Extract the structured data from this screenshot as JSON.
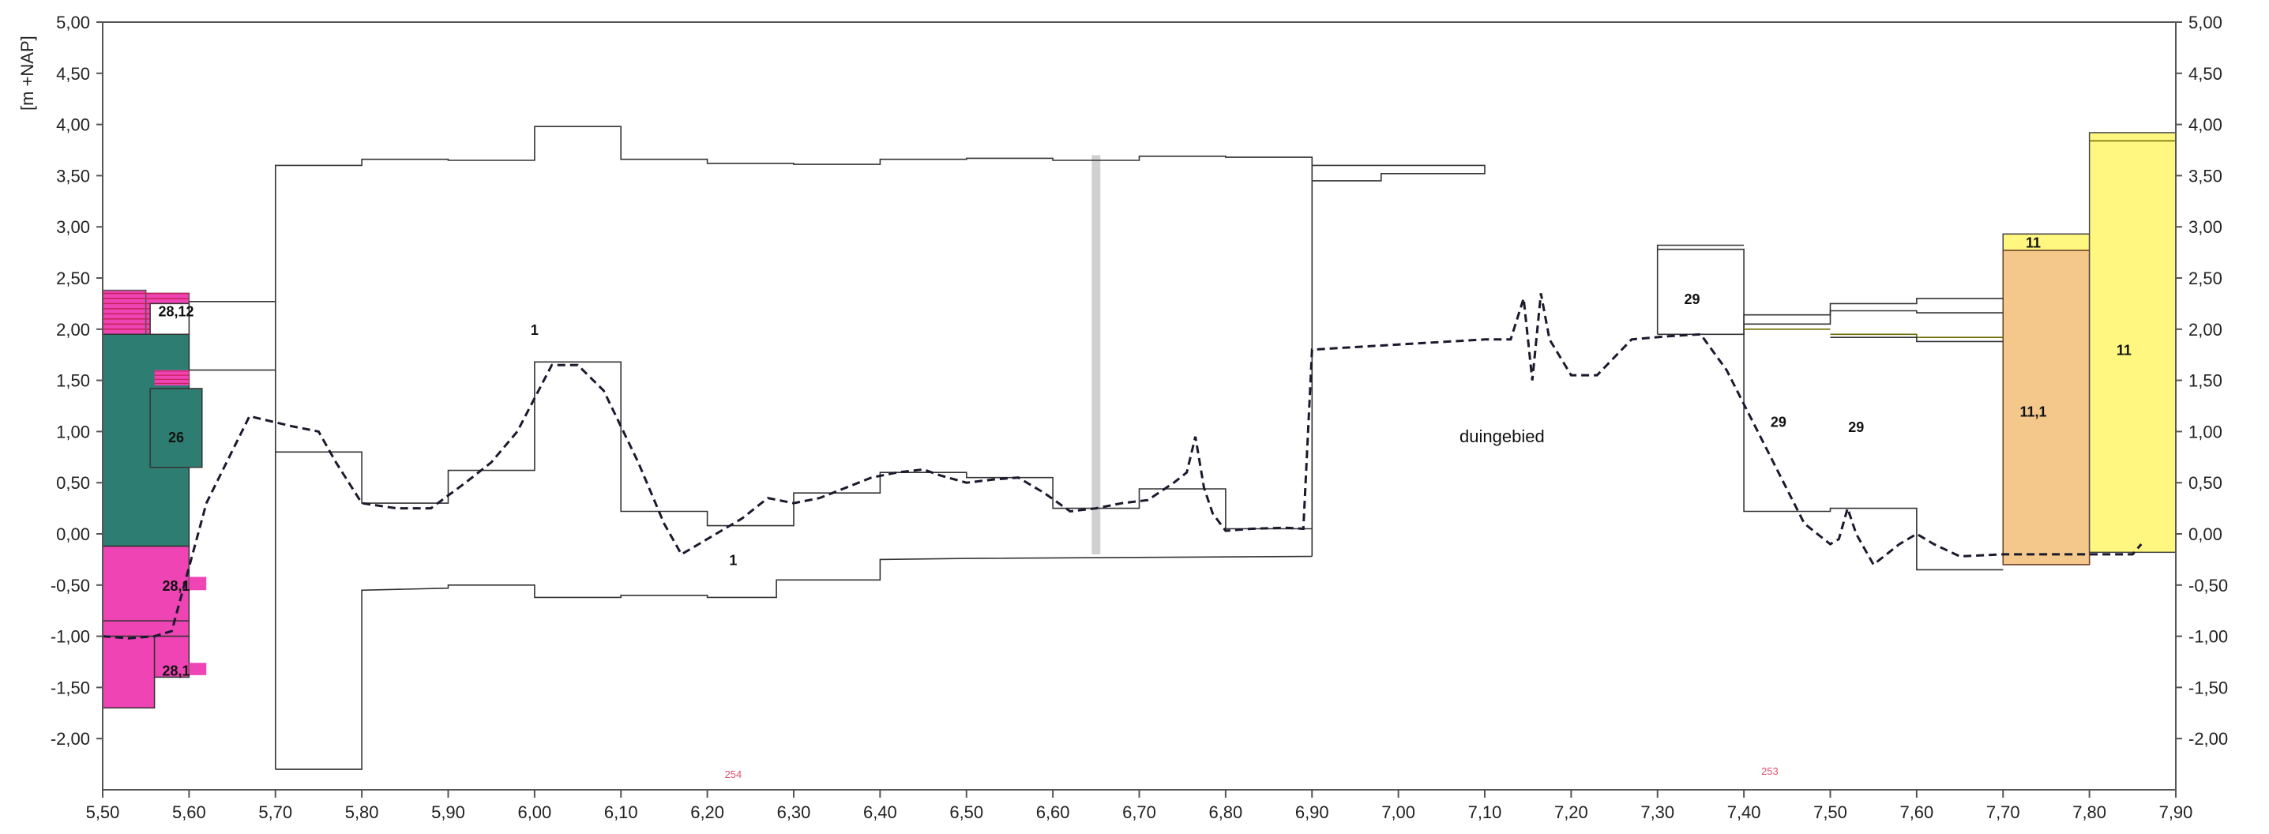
{
  "chart_data": {
    "type": "line",
    "title": "",
    "ylabel": "[m +NAP]",
    "xlim": [
      5.5,
      7.9
    ],
    "ylim": [
      -2.5,
      5.0
    ],
    "x_ticks": [
      "5,50",
      "5,60",
      "5,70",
      "5,80",
      "5,90",
      "6,00",
      "6,10",
      "6,20",
      "6,30",
      "6,40",
      "6,50",
      "6,60",
      "6,70",
      "6,80",
      "6,90",
      "7,00",
      "7,10",
      "7,20",
      "7,30",
      "7,40",
      "7,50",
      "7,60",
      "7,70",
      "7,80",
      "7,90"
    ],
    "x_tick_values": [
      5.5,
      5.6,
      5.7,
      5.8,
      5.9,
      6.0,
      6.1,
      6.2,
      6.3,
      6.4,
      6.5,
      6.6,
      6.7,
      6.8,
      6.9,
      7.0,
      7.1,
      7.2,
      7.3,
      7.4,
      7.5,
      7.6,
      7.7,
      7.8,
      7.9
    ],
    "y_ticks": [
      "5,00",
      "4,50",
      "4,00",
      "3,50",
      "3,00",
      "2,50",
      "2,00",
      "1,50",
      "1,00",
      "0,50",
      "0,00",
      "-0,50",
      "-1,00",
      "-1,50",
      "-2,00"
    ],
    "y_tick_values": [
      5.0,
      4.5,
      4.0,
      3.5,
      3.0,
      2.5,
      2.0,
      1.5,
      1.0,
      0.5,
      0.0,
      -0.5,
      -1.0,
      -1.5,
      -2.0
    ],
    "colors": {
      "pink": "#ee44b4",
      "teal": "#2e7d72",
      "magenta_hatch": "#c8205a",
      "yellow": "#fff780",
      "orange": "#f3c88a",
      "dashed_line": "#1a1a2e",
      "outline": "#333333",
      "grid": "#bbbbbb"
    },
    "series": [
      {
        "style": "dashed",
        "x": [
          5.5,
          5.53,
          5.56,
          5.58,
          5.62,
          5.67,
          5.72,
          5.75,
          5.77,
          5.8,
          5.84,
          5.88,
          5.92,
          5.95,
          5.98,
          6.02,
          6.05,
          6.08,
          6.12,
          6.15,
          6.17,
          6.19,
          6.21,
          6.24,
          6.27,
          6.3,
          6.33,
          6.36,
          6.39,
          6.42,
          6.45,
          6.47,
          6.5,
          6.53,
          6.56,
          6.59,
          6.62,
          6.65,
          6.68,
          6.71,
          6.74,
          6.755,
          6.765,
          6.775,
          6.785,
          6.8,
          6.83,
          6.87,
          6.89,
          6.9,
          7.0,
          7.1,
          7.13,
          7.145,
          7.155,
          7.165,
          7.175,
          7.2,
          7.23,
          7.27,
          7.31,
          7.35,
          7.38,
          7.41,
          7.44,
          7.47,
          7.5,
          7.51,
          7.52,
          7.53,
          7.55,
          7.58,
          7.6,
          7.62,
          7.65,
          7.7,
          7.75,
          7.8,
          7.85,
          7.86
        ],
        "y": [
          -1.0,
          -1.02,
          -1.0,
          -0.95,
          0.3,
          1.15,
          1.05,
          1.0,
          0.7,
          0.3,
          0.25,
          0.25,
          0.5,
          0.7,
          1.0,
          1.65,
          1.65,
          1.4,
          0.7,
          0.1,
          -0.2,
          -0.1,
          0.0,
          0.15,
          0.35,
          0.3,
          0.35,
          0.45,
          0.55,
          0.6,
          0.63,
          0.57,
          0.5,
          0.53,
          0.55,
          0.4,
          0.22,
          0.25,
          0.3,
          0.33,
          0.5,
          0.6,
          0.95,
          0.45,
          0.2,
          0.03,
          0.05,
          0.06,
          0.05,
          1.8,
          1.85,
          1.9,
          1.9,
          2.3,
          1.5,
          2.35,
          1.9,
          1.55,
          1.55,
          1.9,
          1.93,
          1.95,
          1.6,
          1.1,
          0.6,
          0.1,
          -0.1,
          -0.05,
          0.25,
          0.0,
          -0.3,
          -0.1,
          0.0,
          -0.1,
          -0.22,
          -0.2,
          -0.2,
          -0.2,
          -0.2,
          -0.1
        ]
      }
    ],
    "annotations": [
      {
        "text": "28,12",
        "x": 5.585,
        "y": 2.18
      },
      {
        "text": "26",
        "x": 5.585,
        "y": 0.95
      },
      {
        "text": "28,1",
        "x": 5.585,
        "y": -0.5
      },
      {
        "text": "28,1",
        "x": 5.585,
        "y": -1.33
      },
      {
        "text": "1",
        "x": 6.0,
        "y": 2.0
      },
      {
        "text": "1",
        "x": 6.23,
        "y": -0.25
      },
      {
        "text": "duingebied",
        "x": 7.12,
        "y": 0.95
      },
      {
        "text": "29",
        "x": 7.34,
        "y": 2.3
      },
      {
        "text": "29",
        "x": 7.44,
        "y": 1.1
      },
      {
        "text": "29",
        "x": 7.53,
        "y": 1.05
      },
      {
        "text": "11",
        "x": 7.735,
        "y": 2.85
      },
      {
        "text": "11,1",
        "x": 7.735,
        "y": 1.2
      },
      {
        "text": "11",
        "x": 7.84,
        "y": 1.8
      },
      {
        "text": "254",
        "x": 6.23,
        "y": -2.33
      },
      {
        "text": "253",
        "x": 7.43,
        "y": -2.3
      }
    ]
  }
}
